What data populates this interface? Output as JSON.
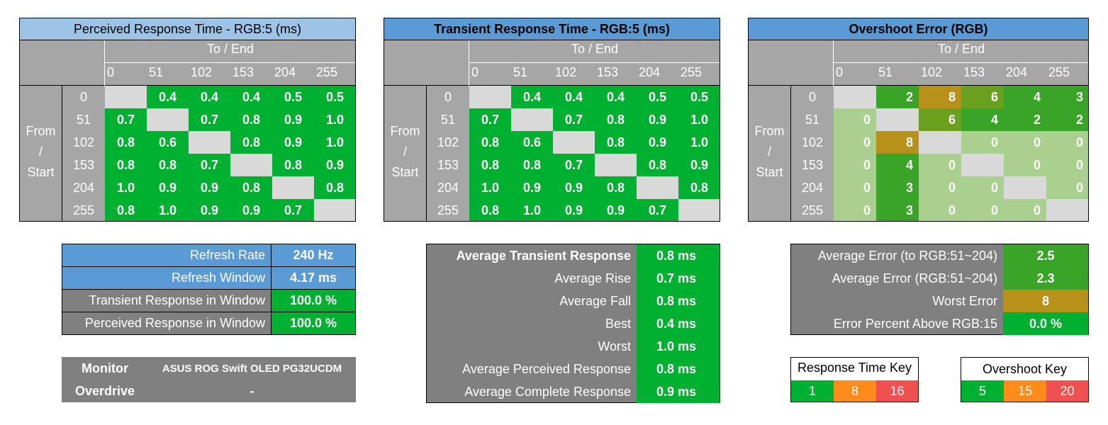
{
  "panels": [
    {
      "title": "Perceived Response Time - RGB:5 (ms)",
      "to_label": "To / End",
      "from_label": [
        "From",
        "/",
        "Start"
      ],
      "ticks": [
        "0",
        "51",
        "102",
        "153",
        "204",
        "255"
      ],
      "rows": [
        [
          "",
          "0.4",
          "0.4",
          "0.4",
          "0.5",
          "0.5"
        ],
        [
          "0.7",
          "",
          "0.7",
          "0.8",
          "0.9",
          "1.0"
        ],
        [
          "0.8",
          "0.6",
          "",
          "0.8",
          "0.9",
          "1.0"
        ],
        [
          "0.8",
          "0.8",
          "0.7",
          "",
          "0.8",
          "0.9"
        ],
        [
          "1.0",
          "0.9",
          "0.9",
          "0.8",
          "",
          "0.8"
        ],
        [
          "0.8",
          "1.0",
          "0.9",
          "0.9",
          "0.7",
          ""
        ]
      ]
    },
    {
      "title": "Transient Response Time - RGB:5 (ms)",
      "to_label": "To / End",
      "from_label": [
        "From",
        "/",
        "Start"
      ],
      "ticks": [
        "0",
        "51",
        "102",
        "153",
        "204",
        "255"
      ],
      "rows": [
        [
          "",
          "0.4",
          "0.4",
          "0.4",
          "0.5",
          "0.5"
        ],
        [
          "0.7",
          "",
          "0.7",
          "0.8",
          "0.9",
          "1.0"
        ],
        [
          "0.8",
          "0.6",
          "",
          "0.8",
          "0.9",
          "1.0"
        ],
        [
          "0.8",
          "0.8",
          "0.7",
          "",
          "0.8",
          "0.9"
        ],
        [
          "1.0",
          "0.9",
          "0.9",
          "0.8",
          "",
          "0.8"
        ],
        [
          "0.8",
          "1.0",
          "0.9",
          "0.9",
          "0.7",
          ""
        ]
      ]
    },
    {
      "title": "Overshoot Error (RGB)",
      "to_label": "To / End",
      "from_label": [
        "From",
        "/",
        "Start"
      ],
      "ticks": [
        "0",
        "51",
        "102",
        "153",
        "204",
        "255"
      ],
      "rows": [
        [
          "",
          "2",
          "8",
          "6",
          "4",
          "3"
        ],
        [
          "0",
          "",
          "6",
          "4",
          "2",
          "2"
        ],
        [
          "0",
          "8",
          "",
          "0",
          "0",
          "0"
        ],
        [
          "0",
          "4",
          "0",
          "",
          "0",
          "0"
        ],
        [
          "0",
          "3",
          "0",
          "0",
          "",
          "0"
        ],
        [
          "0",
          "3",
          "0",
          "0",
          "0",
          ""
        ]
      ]
    }
  ],
  "chart_data": [
    {
      "type": "heatmap",
      "title": "Perceived Response Time - RGB:5 (ms)",
      "xlabel": "To / End",
      "ylabel": "From / Start",
      "x": [
        0,
        51,
        102,
        153,
        204,
        255
      ],
      "y": [
        0,
        51,
        102,
        153,
        204,
        255
      ],
      "values": [
        [
          null,
          0.4,
          0.4,
          0.4,
          0.5,
          0.5
        ],
        [
          0.7,
          null,
          0.7,
          0.8,
          0.9,
          1.0
        ],
        [
          0.8,
          0.6,
          null,
          0.8,
          0.9,
          1.0
        ],
        [
          0.8,
          0.8,
          0.7,
          null,
          0.8,
          0.9
        ],
        [
          1.0,
          0.9,
          0.9,
          0.8,
          null,
          0.8
        ],
        [
          0.8,
          1.0,
          0.9,
          0.9,
          0.7,
          null
        ]
      ]
    },
    {
      "type": "heatmap",
      "title": "Transient Response Time - RGB:5 (ms)",
      "xlabel": "To / End",
      "ylabel": "From / Start",
      "x": [
        0,
        51,
        102,
        153,
        204,
        255
      ],
      "y": [
        0,
        51,
        102,
        153,
        204,
        255
      ],
      "values": [
        [
          null,
          0.4,
          0.4,
          0.4,
          0.5,
          0.5
        ],
        [
          0.7,
          null,
          0.7,
          0.8,
          0.9,
          1.0
        ],
        [
          0.8,
          0.6,
          null,
          0.8,
          0.9,
          1.0
        ],
        [
          0.8,
          0.8,
          0.7,
          null,
          0.8,
          0.9
        ],
        [
          1.0,
          0.9,
          0.9,
          0.8,
          null,
          0.8
        ],
        [
          0.8,
          1.0,
          0.9,
          0.9,
          0.7,
          null
        ]
      ]
    },
    {
      "type": "heatmap",
      "title": "Overshoot Error (RGB)",
      "xlabel": "To / End",
      "ylabel": "From / Start",
      "x": [
        0,
        51,
        102,
        153,
        204,
        255
      ],
      "y": [
        0,
        51,
        102,
        153,
        204,
        255
      ],
      "values": [
        [
          null,
          2,
          8,
          6,
          4,
          3
        ],
        [
          0,
          null,
          6,
          4,
          2,
          2
        ],
        [
          0,
          8,
          null,
          0,
          0,
          0
        ],
        [
          0,
          4,
          0,
          null,
          0,
          0
        ],
        [
          0,
          3,
          0,
          0,
          null,
          0
        ],
        [
          0,
          3,
          0,
          0,
          0,
          null
        ]
      ]
    }
  ],
  "refresh_table": [
    {
      "label": "Refresh Rate",
      "value": "240 Hz"
    },
    {
      "label": "Refresh Window",
      "value": "4.17 ms"
    },
    {
      "label": "Transient Response in Window",
      "value": "100.0 %"
    },
    {
      "label": "Perceived Response in Window",
      "value": "100.0 %"
    }
  ],
  "monitor": {
    "monitor_label": "Monitor",
    "monitor_value": "ASUS ROG Swift OLED PG32UCDM",
    "overdrive_label": "Overdrive",
    "overdrive_value": "-"
  },
  "transient_summary": [
    {
      "label": "Average Transient Response",
      "value": "0.8 ms"
    },
    {
      "label": "Average Rise",
      "value": "0.7 ms"
    },
    {
      "label": "Average Fall",
      "value": "0.8 ms"
    },
    {
      "label": "Best",
      "value": "0.4 ms"
    },
    {
      "label": "Worst",
      "value": "1.0 ms"
    },
    {
      "label": "Average Perceived Response",
      "value": "0.8 ms"
    },
    {
      "label": "Average Complete Response",
      "value": "0.9 ms"
    }
  ],
  "error_summary": [
    {
      "label": "Average Error (to RGB:51~204)",
      "value": "2.5"
    },
    {
      "label": "Average Error (RGB:51~204)",
      "value": "2.3"
    },
    {
      "label": "Worst Error",
      "value": "8"
    },
    {
      "label": "Error Percent Above RGB:15",
      "value": "0.0 %"
    }
  ],
  "response_key": {
    "title": "Response Time Key",
    "values": [
      "1",
      "8",
      "16"
    ]
  },
  "overshoot_key": {
    "title": "Overshoot Key",
    "values": [
      "5",
      "15",
      "20"
    ]
  },
  "colors": {
    "green": "#00b030",
    "orange": "#ff8c1a",
    "red": "#f05050",
    "diagonal": "#d9d9d9",
    "header_grey": "#a6a6a6",
    "summary_grey": "#808080",
    "title_blue": "#5b9bd5",
    "title_light_blue": "#9dc3e6",
    "error_light_green": "#a9d08e",
    "error_mid_green": "#39a427",
    "error_olive": "#b8911a"
  }
}
